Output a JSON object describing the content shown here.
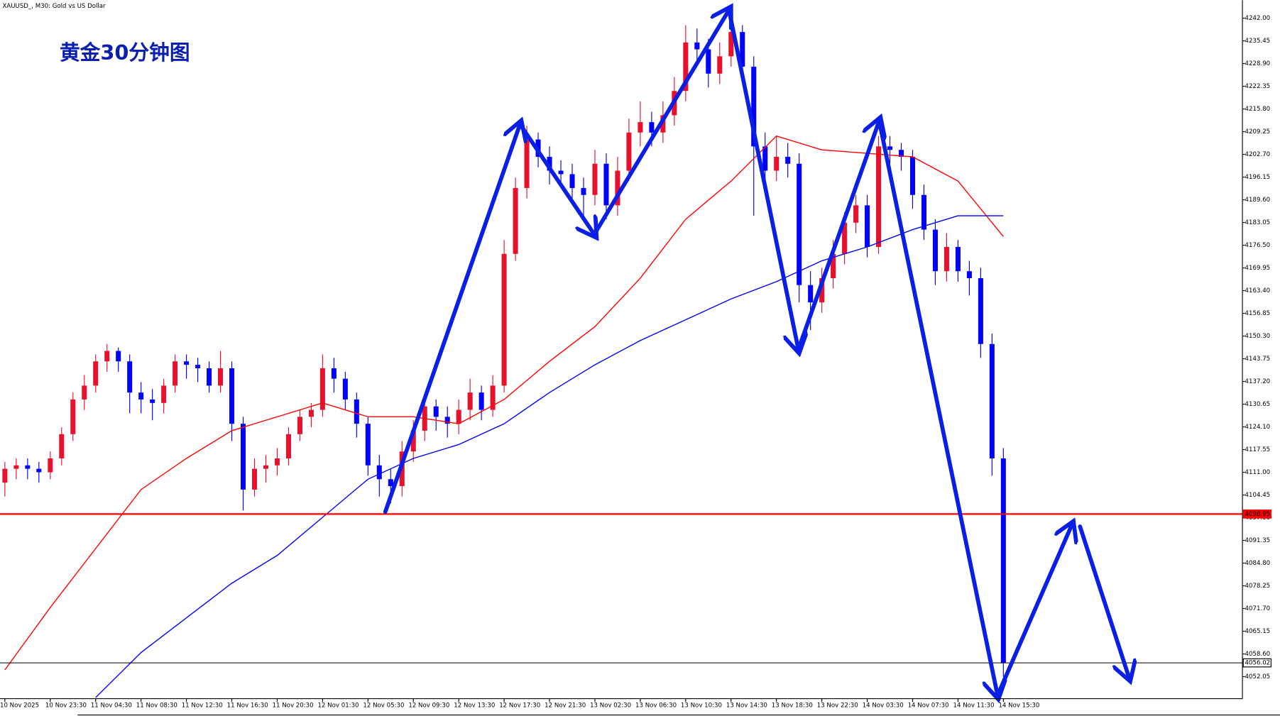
{
  "chart_data": {
    "type": "candlestick",
    "symbol_title": "XAUUSD_, M30:  Gold vs US Dollar",
    "title": "黄金30分钟图",
    "up_color": "#e8112d",
    "down_color": "#0000ff",
    "xlim": [
      -0.43,
      109.07
    ],
    "xticks": [
      {
        "value": 0,
        "label": "10 Nov 2025"
      },
      {
        "value": 4,
        "label": "10 Nov 23:30"
      },
      {
        "value": 8,
        "label": "11 Nov 04:30"
      },
      {
        "value": 12,
        "label": "11 Nov 08:30"
      },
      {
        "value": 16,
        "label": "11 Nov 12:30"
      },
      {
        "value": 20,
        "label": "11 Nov 16:30"
      },
      {
        "value": 24,
        "label": "11 Nov 20:30"
      },
      {
        "value": 28,
        "label": "12 Nov 01:30"
      },
      {
        "value": 32,
        "label": "12 Nov 05:30"
      },
      {
        "value": 36,
        "label": "12 Nov 09:30"
      },
      {
        "value": 40,
        "label": "12 Nov 13:30"
      },
      {
        "value": 44,
        "label": "12 Nov 17:30"
      },
      {
        "value": 48,
        "label": "12 Nov 21:30"
      },
      {
        "value": 52,
        "label": "13 Nov 02:30"
      },
      {
        "value": 56,
        "label": "13 Nov 06:30"
      },
      {
        "value": 60,
        "label": "13 Nov 10:30"
      },
      {
        "value": 64,
        "label": "13 Nov 14:30"
      },
      {
        "value": 68,
        "label": "13 Nov 18:30"
      },
      {
        "value": 72,
        "label": "13 Nov 22:30"
      },
      {
        "value": 76,
        "label": "14 Nov 03:30"
      },
      {
        "value": 80,
        "label": "14 Nov 07:30"
      },
      {
        "value": 84,
        "label": "14 Nov 11:30"
      },
      {
        "value": 88,
        "label": "14 Nov 15:30"
      }
    ],
    "ylim": [
      4045.69,
      4247.18
    ],
    "yticks": [
      4052.05,
      {
        "value": 4058.6,
        "label": "4058.60"
      },
      4065.15,
      {
        "value": 4071.7,
        "label": "4071.70"
      },
      4078.25,
      {
        "value": 4084.8,
        "label": "4084.80"
      },
      4091.35,
      {
        "value": 4097.9,
        "label": "4097.90"
      },
      4104.45,
      {
        "value": 4111,
        "label": "4111.00"
      },
      4117.55,
      {
        "value": 4124.1,
        "label": "4124.10"
      },
      4130.65,
      {
        "value": 4137.2,
        "label": "4137.20"
      },
      4143.75,
      {
        "value": 4150.3,
        "label": "4150.30"
      },
      4156.85,
      {
        "value": 4163.4,
        "label": "4163.40"
      },
      4169.95,
      {
        "value": 4176.5,
        "label": "4176.50"
      },
      4183.05,
      {
        "value": 4189.6,
        "label": "4189.60"
      },
      4196.15,
      {
        "value": 4202.7,
        "label": "4202.70"
      },
      4209.25,
      {
        "value": 4215.8,
        "label": "4215.80"
      },
      4222.35,
      {
        "value": 4228.9,
        "label": "4228.90"
      },
      4235.45,
      {
        "value": 4242,
        "label": "4242.00"
      }
    ],
    "ohlc": [
      [
        4108,
        4114,
        4104,
        4112
      ],
      [
        4112,
        4115,
        4109,
        4113
      ],
      [
        4113,
        4115,
        4109,
        4112
      ],
      [
        4112,
        4114,
        4108,
        4111
      ],
      [
        4111,
        4117,
        4109,
        4115
      ],
      [
        4115,
        4124,
        4113,
        4122
      ],
      [
        4122,
        4134,
        4120,
        4132
      ],
      [
        4132,
        4139,
        4129,
        4136
      ],
      [
        4136,
        4145,
        4134,
        4143
      ],
      [
        4143,
        4148,
        4140,
        4146
      ],
      [
        4146,
        4147,
        4140,
        4143
      ],
      [
        4143,
        4145,
        4128,
        4134
      ],
      [
        4134,
        4137,
        4128,
        4132
      ],
      [
        4132,
        4135,
        4126,
        4131
      ],
      [
        4131,
        4138,
        4128,
        4136
      ],
      [
        4136,
        4145,
        4134,
        4143
      ],
      [
        4143,
        4145,
        4138,
        4142
      ],
      [
        4142,
        4144,
        4137,
        4141
      ],
      [
        4141,
        4143,
        4134,
        4136
      ],
      [
        4136,
        4146,
        4134,
        4141
      ],
      [
        4141,
        4143,
        4120,
        4125
      ],
      [
        4125,
        4127,
        4100,
        4106
      ],
      [
        4106,
        4115,
        4104,
        4112
      ],
      [
        4112,
        4116,
        4108,
        4113
      ],
      [
        4113,
        4118,
        4110,
        4115
      ],
      [
        4115,
        4124,
        4113,
        4122
      ],
      [
        4122,
        4129,
        4120,
        4127
      ],
      [
        4127,
        4131,
        4124,
        4129
      ],
      [
        4129,
        4145,
        4127,
        4141
      ],
      [
        4141,
        4144,
        4134,
        4138
      ],
      [
        4138,
        4140,
        4129,
        4132
      ],
      [
        4132,
        4134,
        4121,
        4125
      ],
      [
        4125,
        4127,
        4110,
        4113
      ],
      [
        4113,
        4116,
        4104,
        4109
      ],
      [
        4109,
        4112,
        4102,
        4107
      ],
      [
        4107,
        4120,
        4104,
        4117
      ],
      [
        4117,
        4126,
        4114,
        4123
      ],
      [
        4123,
        4133,
        4120,
        4130
      ],
      [
        4130,
        4132,
        4123,
        4127
      ],
      [
        4127,
        4130,
        4121,
        4125
      ],
      [
        4125,
        4132,
        4122,
        4129
      ],
      [
        4129,
        4138,
        4126,
        4134
      ],
      [
        4134,
        4136,
        4126,
        4129
      ],
      [
        4129,
        4139,
        4127,
        4136
      ],
      [
        4136,
        4178,
        4134,
        4174
      ],
      [
        4174,
        4196,
        4172,
        4193
      ],
      [
        4193,
        4211,
        4190,
        4207
      ],
      [
        4207,
        4209,
        4199,
        4202
      ],
      [
        4202,
        4205,
        4194,
        4198
      ],
      [
        4198,
        4201,
        4193,
        4197
      ],
      [
        4197,
        4200,
        4189,
        4193
      ],
      [
        4193,
        4196,
        4185,
        4191
      ],
      [
        4191,
        4204,
        4188,
        4200
      ],
      [
        4200,
        4203,
        4184,
        4188
      ],
      [
        4188,
        4202,
        4185,
        4198
      ],
      [
        4198,
        4213,
        4195,
        4209
      ],
      [
        4209,
        4218,
        4205,
        4212
      ],
      [
        4212,
        4215,
        4205,
        4209
      ],
      [
        4209,
        4218,
        4206,
        4214
      ],
      [
        4214,
        4225,
        4211,
        4221
      ],
      [
        4221,
        4240,
        4218,
        4235
      ],
      [
        4235,
        4239,
        4229,
        4233
      ],
      [
        4233,
        4236,
        4222,
        4226
      ],
      [
        4226,
        4235,
        4223,
        4231
      ],
      [
        4231,
        4243,
        4228,
        4238
      ],
      [
        4238,
        4240,
        4224,
        4228
      ],
      [
        4228,
        4231,
        4185,
        4205
      ],
      [
        4205,
        4209,
        4193,
        4198
      ],
      [
        4198,
        4208,
        4195,
        4202
      ],
      [
        4202,
        4206,
        4196,
        4200
      ],
      [
        4200,
        4203,
        4160,
        4165
      ],
      [
        4165,
        4169,
        4152,
        4160
      ],
      [
        4160,
        4170,
        4157,
        4167
      ],
      [
        4167,
        4178,
        4164,
        4174
      ],
      [
        4174,
        4186,
        4171,
        4183
      ],
      [
        4183,
        4191,
        4180,
        4188
      ],
      [
        4188,
        4191,
        4173,
        4176
      ],
      [
        4176,
        4208,
        4174,
        4205
      ],
      [
        4205,
        4208,
        4200,
        4204
      ],
      [
        4204,
        4206,
        4198,
        4202
      ],
      [
        4202,
        4204,
        4187,
        4191
      ],
      [
        4191,
        4194,
        4178,
        4181
      ],
      [
        4181,
        4184,
        4165,
        4169
      ],
      [
        4169,
        4180,
        4166,
        4176
      ],
      [
        4176,
        4178,
        4166,
        4169
      ],
      [
        4169,
        4172,
        4162,
        4167
      ],
      [
        4167,
        4170,
        4144,
        4148
      ],
      [
        4148,
        4151,
        4110,
        4115
      ],
      [
        4115,
        4118,
        4052,
        4056.02
      ]
    ],
    "series": [
      {
        "color": "#ff0000",
        "x": [
          0,
          4,
          8,
          12,
          16,
          20,
          24,
          28,
          32,
          36,
          40,
          44,
          48,
          52,
          56,
          60,
          64,
          68,
          72,
          76,
          80,
          84,
          88
        ],
        "values": [
          4054,
          4072,
          4089,
          4106,
          4115,
          4123,
          4127,
          4131,
          4127,
          4127,
          4125,
          4132,
          4143,
          4153,
          4167,
          4184,
          4195,
          4208,
          4204,
          4203,
          4202,
          4195,
          4179
        ]
      },
      {
        "color": "#0000ff",
        "x": [
          0,
          4,
          8,
          12,
          16,
          20,
          24,
          28,
          32,
          36,
          40,
          44,
          48,
          52,
          56,
          60,
          64,
          68,
          72,
          76,
          80,
          84,
          88
        ],
        "values": [
          null,
          null,
          4046,
          4059,
          4069,
          4079,
          4087,
          4098,
          4109,
          4115,
          4119,
          4125,
          4134,
          4142,
          4149,
          4155,
          4161,
          4166,
          4172,
          4176,
          4181,
          4185,
          4185
        ]
      }
    ],
    "hlines": [
      {
        "value": 4098.95,
        "color": "#ff0000"
      },
      {
        "value": 4056.02,
        "color": "#000000"
      }
    ]
  }
}
